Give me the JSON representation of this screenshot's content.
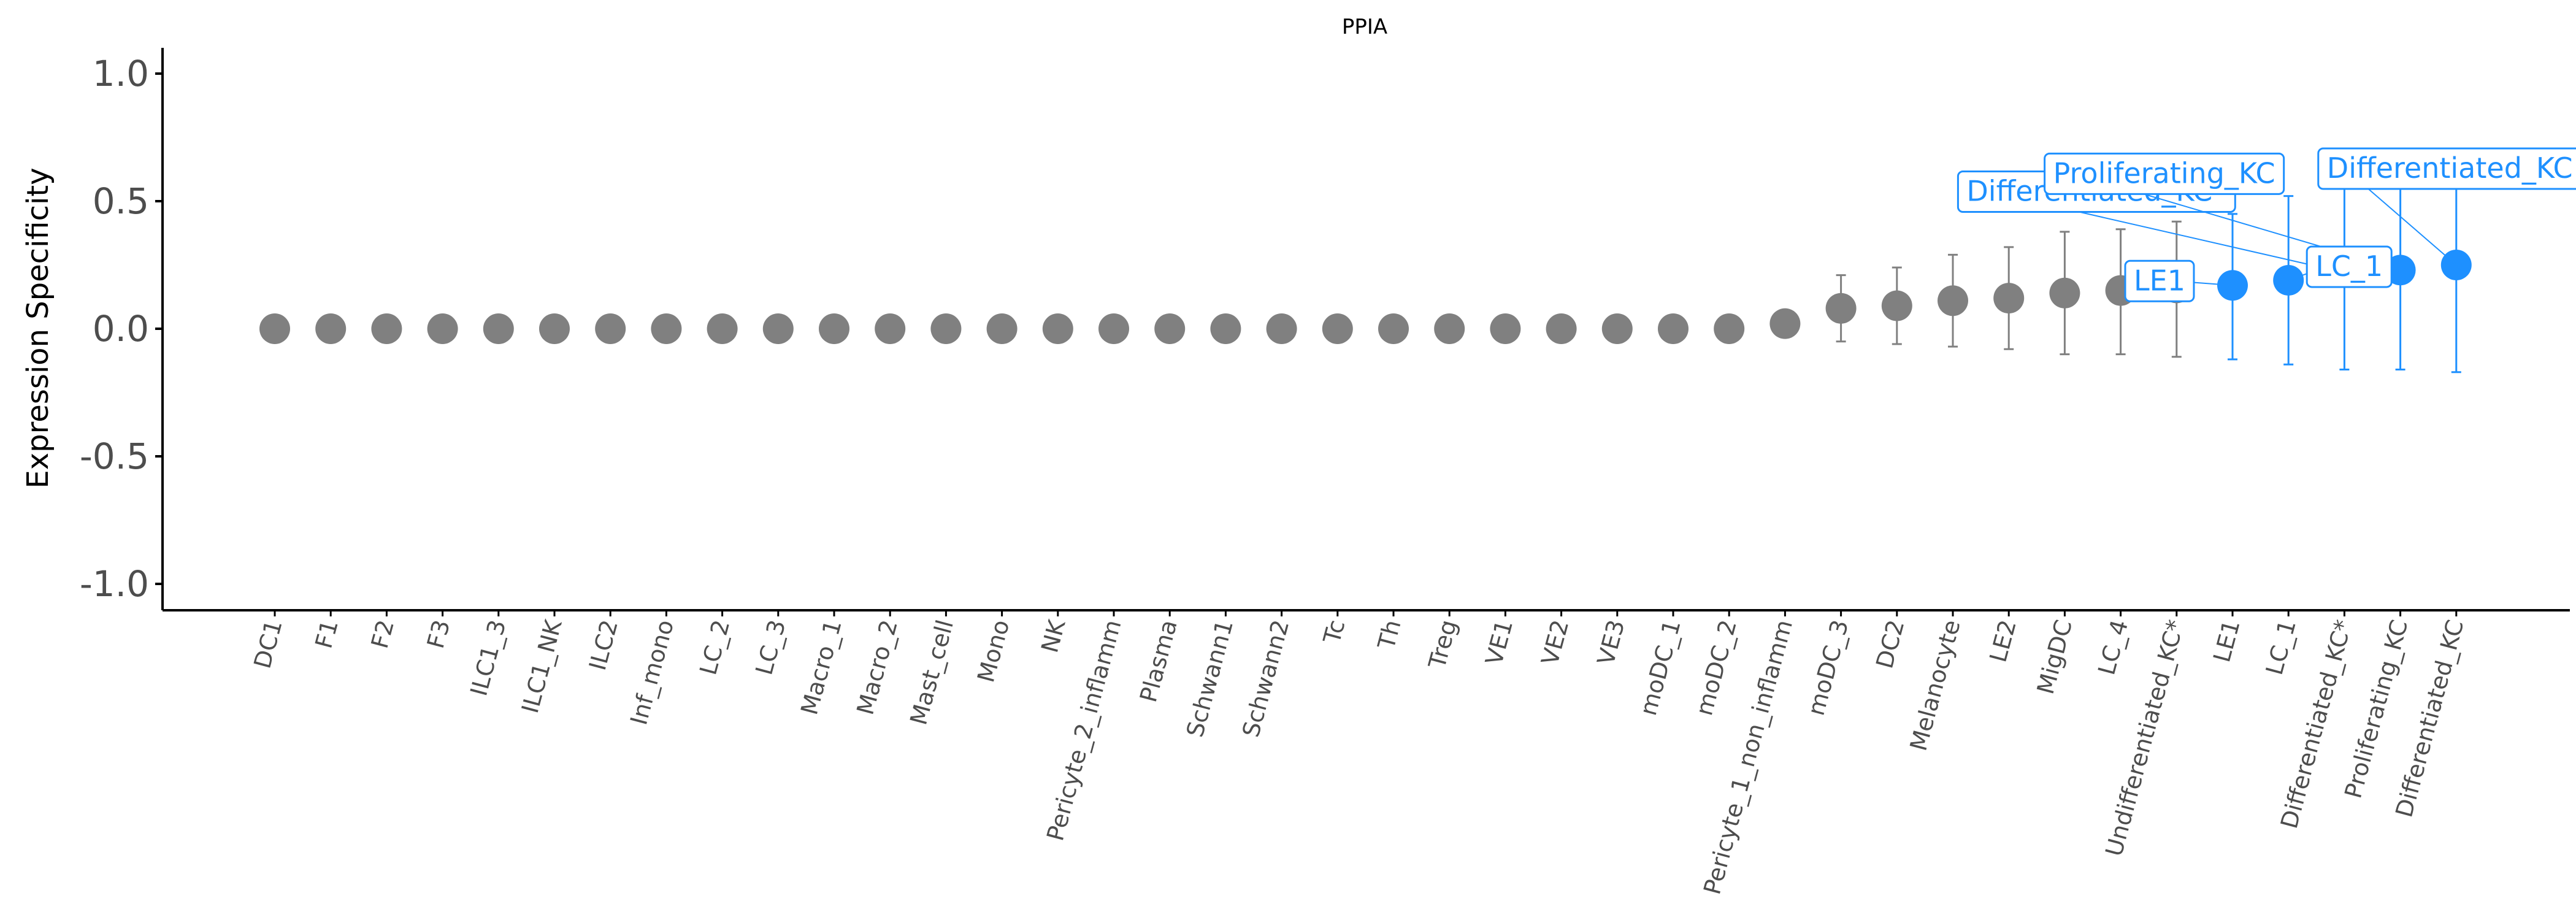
{
  "chart_data": {
    "type": "scatter",
    "title": "PPIA",
    "xlabel": "",
    "ylabel": "Expression Specificity",
    "ylim": [
      -1.1,
      1.1
    ],
    "yticks": [
      "1.0",
      "0.5",
      "0.0",
      "-0.5",
      "-1.0"
    ],
    "ytick_values": [
      1.0,
      0.5,
      0.0,
      -0.5,
      -1.0
    ],
    "colors": {
      "default": "#808080",
      "highlight": "#1e90ff",
      "axis": "#000000",
      "tick_text": "#4d4d4d",
      "label_bg": "#ffffff"
    },
    "points": [
      {
        "category": "DC1",
        "value": 0.0
      },
      {
        "category": "F1",
        "value": 0.0
      },
      {
        "category": "F2",
        "value": 0.0
      },
      {
        "category": "F3",
        "value": 0.0
      },
      {
        "category": "ILC1_3",
        "value": 0.0
      },
      {
        "category": "ILC1_NK",
        "value": 0.0
      },
      {
        "category": "ILC2",
        "value": 0.0
      },
      {
        "category": "Inf_mono",
        "value": 0.0
      },
      {
        "category": "LC_2",
        "value": 0.0
      },
      {
        "category": "LC_3",
        "value": 0.0
      },
      {
        "category": "Macro_1",
        "value": 0.0
      },
      {
        "category": "Macro_2",
        "value": 0.0
      },
      {
        "category": "Mast_cell",
        "value": 0.0
      },
      {
        "category": "Mono",
        "value": 0.0
      },
      {
        "category": "NK",
        "value": 0.0
      },
      {
        "category": "Pericyte_2_inflamm",
        "value": 0.0
      },
      {
        "category": "Plasma",
        "value": 0.0
      },
      {
        "category": "Schwann1",
        "value": 0.0
      },
      {
        "category": "Schwann2",
        "value": 0.0
      },
      {
        "category": "Tc",
        "value": 0.0
      },
      {
        "category": "Th",
        "value": 0.0
      },
      {
        "category": "Treg",
        "value": 0.0
      },
      {
        "category": "VE1",
        "value": 0.0
      },
      {
        "category": "VE2",
        "value": 0.0
      },
      {
        "category": "VE3",
        "value": 0.0
      },
      {
        "category": "moDC_1",
        "value": 0.0
      },
      {
        "category": "moDC_2",
        "value": 0.0
      },
      {
        "category": "Pericyte_1_non_inflamm",
        "value": 0.02
      },
      {
        "category": "moDC_3",
        "value": 0.08,
        "err_low": -0.05,
        "err_high": 0.21
      },
      {
        "category": "DC2",
        "value": 0.09,
        "err_low": -0.06,
        "err_high": 0.24
      },
      {
        "category": "Melanocyte",
        "value": 0.11,
        "err_low": -0.07,
        "err_high": 0.29
      },
      {
        "category": "LE2",
        "value": 0.12,
        "err_low": -0.08,
        "err_high": 0.32
      },
      {
        "category": "MigDC",
        "value": 0.14,
        "err_low": -0.1,
        "err_high": 0.38
      },
      {
        "category": "LC_4",
        "value": 0.15,
        "err_low": -0.1,
        "err_high": 0.39
      },
      {
        "category": "Undifferentiated_KC*",
        "value": 0.16,
        "err_low": -0.11,
        "err_high": 0.42
      },
      {
        "category": "LE1",
        "value": 0.17,
        "err_low": -0.12,
        "err_high": 0.45,
        "highlight": true
      },
      {
        "category": "LC_1",
        "value": 0.19,
        "err_low": -0.14,
        "err_high": 0.52,
        "highlight": true
      },
      {
        "category": "Differentiated_KC*",
        "value": 0.22,
        "err_low": -0.16,
        "err_high": 0.6,
        "highlight": true
      },
      {
        "category": "Proliferating_KC",
        "value": 0.23,
        "err_low": -0.16,
        "err_high": 0.61,
        "highlight": true
      },
      {
        "category": "Differentiated_KC",
        "value": 0.25,
        "err_low": -0.17,
        "err_high": 0.67,
        "highlight": true
      }
    ],
    "annotations": [
      {
        "text": "Differentiated_KC*",
        "target": "Differentiated_KC*"
      },
      {
        "text": "Proliferating_KC",
        "target": "Proliferating_KC"
      },
      {
        "text": "LE1",
        "target": "LE1"
      },
      {
        "text": "Differentiated_KC",
        "target": "Differentiated_KC"
      },
      {
        "text": "LC_1",
        "target": "LC_1"
      }
    ]
  }
}
